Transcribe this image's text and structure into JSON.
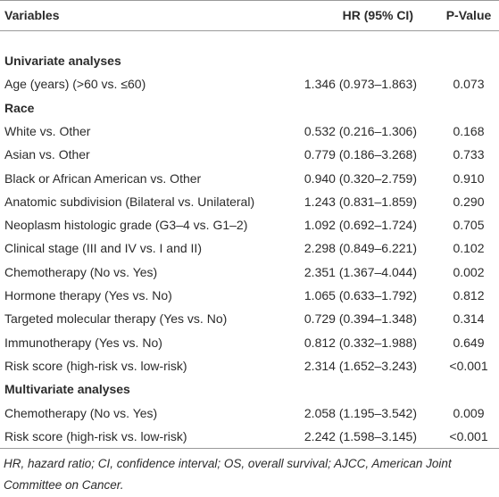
{
  "table": {
    "header": [
      "Variables",
      "HR (95% CI)",
      "P-Value"
    ],
    "rows": [
      [
        "Univariate analyses"
      ],
      [
        "Age (years) (>60 vs. ≤60)",
        "1.346 (0.973–1.863)",
        "0.073"
      ],
      [
        "Race"
      ],
      [
        "White vs. Other",
        "0.532 (0.216–1.306)",
        "0.168"
      ],
      [
        "Asian vs. Other",
        "0.779 (0.186–3.268)",
        "0.733"
      ],
      [
        "Black or African American vs. Other",
        "0.940 (0.320–2.759)",
        "0.910"
      ],
      [
        "Anatomic subdivision (Bilateral vs. Unilateral)",
        "1.243 (0.831–1.859)",
        "0.290"
      ],
      [
        "Neoplasm histologic grade (G3–4 vs. G1–2)",
        "1.092 (0.692–1.724)",
        "0.705"
      ],
      [
        "Clinical stage (III and IV vs. I and II)",
        "2.298 (0.849–6.221)",
        "0.102"
      ],
      [
        "Chemotherapy (No vs. Yes)",
        "2.351 (1.367–4.044)",
        "0.002"
      ],
      [
        "Hormone therapy (Yes vs. No)",
        "1.065 (0.633–1.792)",
        "0.812"
      ],
      [
        "Targeted molecular therapy (Yes vs. No)",
        "0.729 (0.394–1.348)",
        "0.314"
      ],
      [
        "Immunotherapy (Yes vs. No)",
        "0.812 (0.332–1.988)",
        "0.649"
      ],
      [
        "Risk score (high-risk vs. low-risk)",
        "2.314 (1.652–3.243)",
        "<0.001"
      ],
      [
        "Multivariate analyses"
      ],
      [
        "Chemotherapy (No vs. Yes)",
        "2.058 (1.195–3.542)",
        "0.009"
      ],
      [
        "Risk score (high-risk vs. low-risk)",
        "2.242 (1.598–3.145)",
        "<0.001"
      ]
    ]
  },
  "footnote": "HR, hazard ratio; CI, confidence interval; OS, overall survival; AJCC, American Joint Committee on Cancer."
}
